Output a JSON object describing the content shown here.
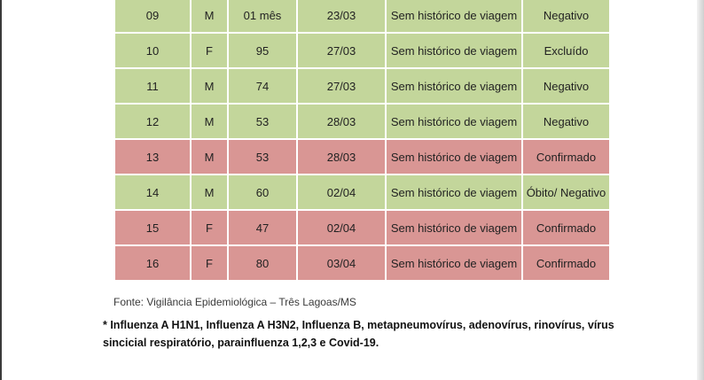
{
  "table": {
    "rows": [
      {
        "num": "09",
        "sex": "M",
        "age": "01 mês",
        "date": "23/03",
        "travel": "Sem histórico de viagem",
        "status": "Negativo",
        "color": "#c3d69b"
      },
      {
        "num": "10",
        "sex": "F",
        "age": "95",
        "date": "27/03",
        "travel": "Sem histórico de viagem",
        "status": "Excluído",
        "color": "#c3d69b"
      },
      {
        "num": "11",
        "sex": "M",
        "age": "74",
        "date": "27/03",
        "travel": "Sem histórico de viagem",
        "status": "Negativo",
        "color": "#c3d69b"
      },
      {
        "num": "12",
        "sex": "M",
        "age": "53",
        "date": "28/03",
        "travel": "Sem histórico de viagem",
        "status": "Negativo",
        "color": "#c3d69b"
      },
      {
        "num": "13",
        "sex": "M",
        "age": "53",
        "date": "28/03",
        "travel": "Sem histórico de viagem",
        "status": "Confirmado",
        "color": "#d99694"
      },
      {
        "num": "14",
        "sex": "M",
        "age": "60",
        "date": "02/04",
        "travel": "Sem histórico de viagem",
        "status": "Óbito/ Negativo",
        "color": "#c3d69b"
      },
      {
        "num": "15",
        "sex": "F",
        "age": "47",
        "date": "02/04",
        "travel": "Sem histórico de viagem",
        "status": "Confirmado",
        "color": "#d99694"
      },
      {
        "num": "16",
        "sex": "F",
        "age": "80",
        "date": "03/04",
        "travel": "Sem histórico de viagem",
        "status": "Confirmado",
        "color": "#d99694"
      }
    ]
  },
  "source": "Fonte: Vigilância Epidemiológica – Três Lagoas/MS",
  "footnote": "* Influenza A H1N1, Influenza A H3N2, Influenza B, metapneumovírus, adenovírus, rinovírus, vírus sincicial respiratório, parainfluenza 1,2,3 e Covid-19."
}
